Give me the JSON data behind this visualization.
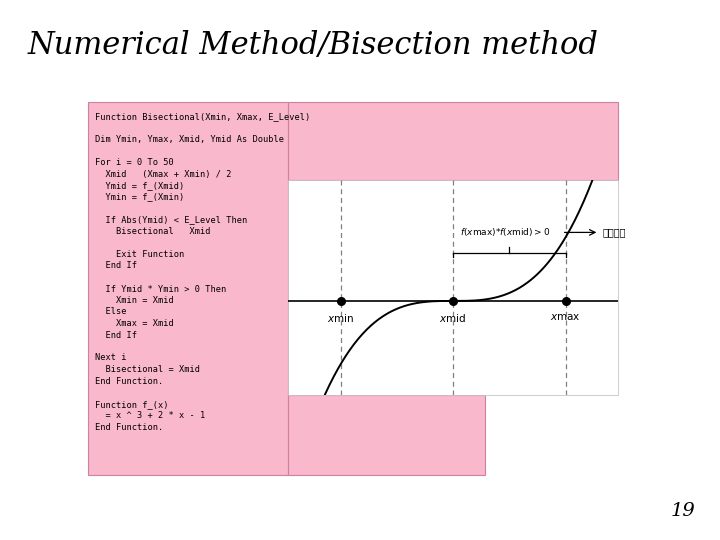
{
  "title": "Numerical Method/Bisection method",
  "page_number": "19",
  "bg_color": "#ffffff",
  "pink_bg": "#f9b8cc",
  "code_lines_top": [
    "Function Bisectional(Xmin, Xmax, E_Level)",
    "",
    "Dim Ymin, Ymax, Xmid, Ymid As Double",
    "",
    "For i = 0 To 50",
    "  Xmid   (Xmax + Xmin) / 2",
    "  Ymid = f_(Xmid)",
    "  Ymin = f_(Xmin)",
    "",
    "  If Abs(Ymid) < E_Level Then",
    "    Bisectional   Xmid",
    "",
    "    Exit Function",
    "  End If",
    "",
    "  If Ymid * Ymin > 0 Then",
    "    Xmin = Xmid",
    "  Else",
    "    Xmax = Xmid",
    "  End If",
    "",
    "Next i",
    "  Bisectional = Xmid",
    "End Function."
  ],
  "code_lines_bottom": [
    "Function f_(x)",
    "  = x ^ 3 + 2 * x - 1",
    "End Function."
  ],
  "korean_text": "기각영역",
  "title_fontsize": 22,
  "code_fontsize": 6.2
}
